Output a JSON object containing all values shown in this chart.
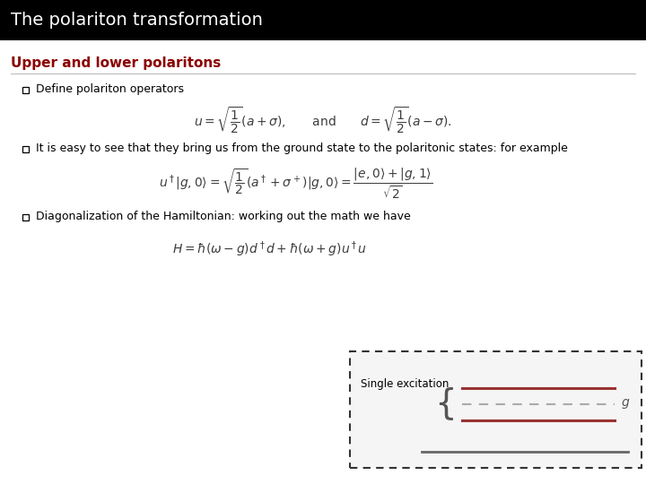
{
  "title": "The polariton transformation",
  "title_bg": "#000000",
  "title_color": "#ffffff",
  "section_title": "Upper and lower polaritons",
  "section_title_color": "#8B0000",
  "bullet1_text": "Define polariton operators",
  "bullet2_text": "It is easy to see that they bring us from the ground state to the polaritonic states: for example",
  "bullet3_text": "Diagonalization of the Hamiltonian: working out the math we have",
  "box_text": "Single excitation",
  "bg_color": "#ffffff",
  "text_color": "#000000",
  "eq_color": "#3d3d3d",
  "dashed_line_color": "#993333",
  "solid_line_color": "#666666",
  "title_fontsize": 14,
  "section_fontsize": 11,
  "bullet_fontsize": 9,
  "eq_fontsize": 10
}
